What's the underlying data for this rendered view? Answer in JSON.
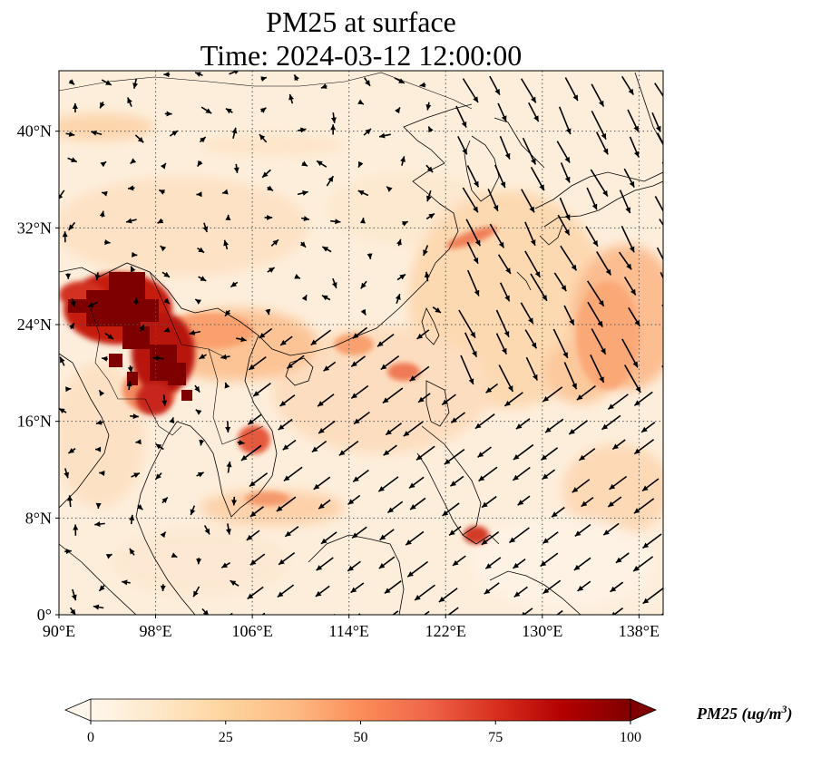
{
  "title": "PM25 at surface",
  "subtitle": "Time: 2024-03-12 12:00:00",
  "map": {
    "extent": {
      "lon_min": 90,
      "lon_max": 140,
      "lat_min": 0,
      "lat_max": 45
    },
    "lon_ticks": [
      {
        "value": 90,
        "label": "90°E"
      },
      {
        "value": 98,
        "label": "98°E"
      },
      {
        "value": 106,
        "label": "106°E"
      },
      {
        "value": 114,
        "label": "114°E"
      },
      {
        "value": 122,
        "label": "122°E"
      },
      {
        "value": 130,
        "label": "130°E"
      },
      {
        "value": 138,
        "label": "138°E"
      }
    ],
    "lat_ticks": [
      {
        "value": 0,
        "label": "0°"
      },
      {
        "value": 8,
        "label": "8°N"
      },
      {
        "value": 16,
        "label": "16°N"
      },
      {
        "value": 24,
        "label": "24°N"
      },
      {
        "value": 32,
        "label": "32°N"
      },
      {
        "value": 40,
        "label": "40°N"
      }
    ],
    "gridlines": "dotted",
    "colormap": "OrRd",
    "colormap_stops": [
      "#fff7ec",
      "#fee8c8",
      "#fdd49e",
      "#fdbb84",
      "#fc8d59",
      "#ef6548",
      "#d7301f",
      "#b30000",
      "#7f0000"
    ],
    "coastline_color": "#000000",
    "wind_vectors": "black arrows"
  },
  "colorbar": {
    "label": "PM25 (ug/m",
    "label_sup": "3",
    "label_close": ")",
    "min": 0,
    "max": 100,
    "ticks": [
      {
        "value": 0,
        "label": "0"
      },
      {
        "value": 25,
        "label": "25"
      },
      {
        "value": 50,
        "label": "50"
      },
      {
        "value": 75,
        "label": "75"
      },
      {
        "value": 100,
        "label": "100"
      }
    ],
    "extend": "both"
  }
}
